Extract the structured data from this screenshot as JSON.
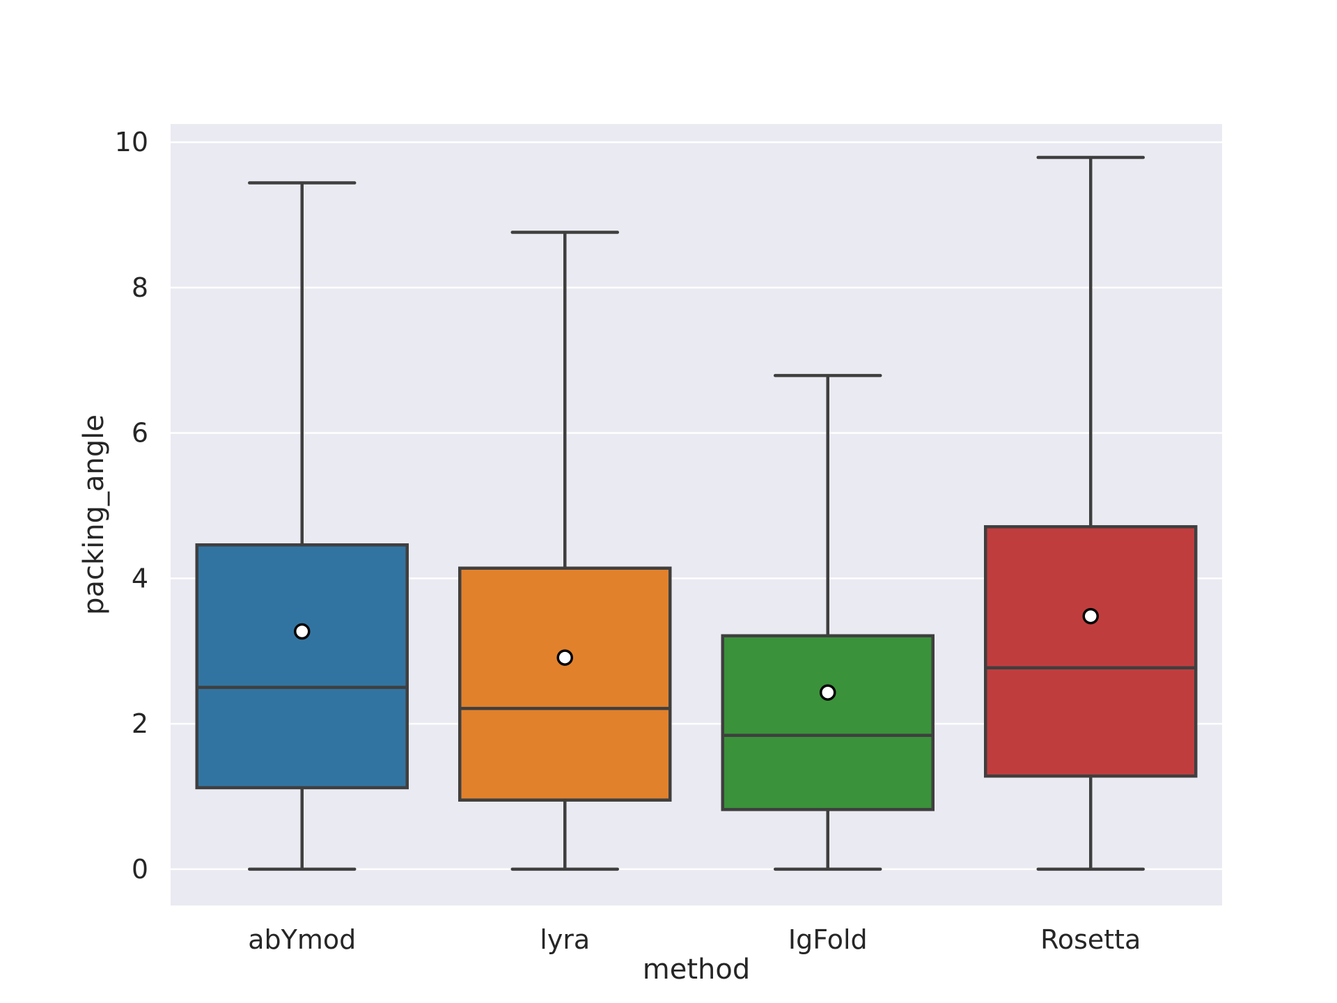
{
  "chart_data": {
    "type": "box",
    "title": "",
    "xlabel": "method",
    "ylabel": "packing_angle",
    "ylim": [
      -0.5,
      10.25
    ],
    "yticks": [
      0,
      2,
      4,
      6,
      8,
      10
    ],
    "grid": true,
    "background": "#EAEAF2",
    "categories": [
      "abYmod",
      "lyra",
      "IgFold",
      "Rosetta"
    ],
    "colors": [
      "#3274A1",
      "#E1812C",
      "#3A923A",
      "#C03D3E"
    ],
    "line_color": "#3F3F3F",
    "boxes": [
      {
        "category": "abYmod",
        "whisker_low": 0.0,
        "q1": 1.12,
        "median": 2.5,
        "q3": 4.46,
        "whisker_high": 9.44,
        "mean": 3.27
      },
      {
        "category": "lyra",
        "whisker_low": 0.0,
        "q1": 0.95,
        "median": 2.21,
        "q3": 4.14,
        "whisker_high": 8.76,
        "mean": 2.91
      },
      {
        "category": "IgFold",
        "whisker_low": 0.0,
        "q1": 0.82,
        "median": 1.84,
        "q3": 3.21,
        "whisker_high": 6.79,
        "mean": 2.43
      },
      {
        "category": "Rosetta",
        "whisker_low": 0.0,
        "q1": 1.28,
        "median": 2.77,
        "q3": 4.71,
        "whisker_high": 9.79,
        "mean": 3.48
      }
    ]
  }
}
